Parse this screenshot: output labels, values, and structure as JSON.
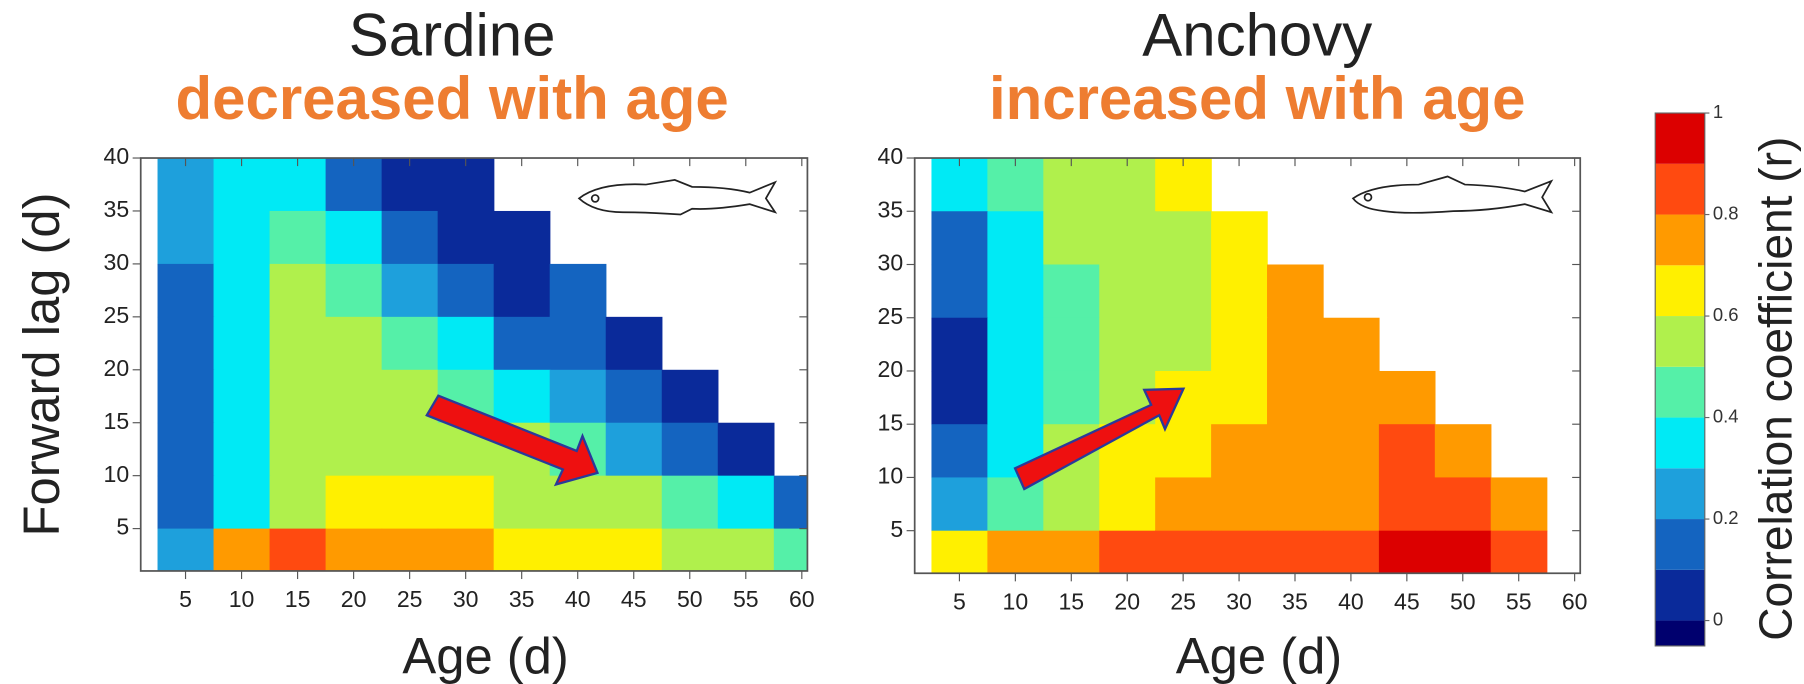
{
  "chart_data": [
    {
      "type": "contour",
      "title": "Sardine",
      "subtitle": "decreased with age",
      "xlabel": "Age (d)",
      "ylabel": "Forward lag (d)",
      "x": [
        5,
        10,
        15,
        20,
        25,
        30,
        35,
        40,
        45,
        50,
        55,
        60
      ],
      "y": [
        37.5,
        32.5,
        27.5,
        22.5,
        17.5,
        12.5,
        7.5,
        2.5
      ],
      "z": [
        [
          0.25,
          0.35,
          0.3,
          0.15,
          0.05,
          0.0,
          null,
          null,
          null,
          null,
          null,
          null
        ],
        [
          0.2,
          0.35,
          0.45,
          0.3,
          0.15,
          0.05,
          0.05,
          null,
          null,
          null,
          null,
          null
        ],
        [
          0.15,
          0.35,
          0.5,
          0.45,
          0.25,
          0.15,
          0.05,
          0.1,
          null,
          null,
          null,
          null
        ],
        [
          0.1,
          0.3,
          0.55,
          0.5,
          0.45,
          0.3,
          0.1,
          0.15,
          0.05,
          null,
          null,
          null
        ],
        [
          0.1,
          0.3,
          0.5,
          0.55,
          0.5,
          0.45,
          0.3,
          0.2,
          0.1,
          0.05,
          null,
          null
        ],
        [
          0.1,
          0.3,
          0.5,
          0.55,
          0.55,
          0.55,
          0.5,
          0.45,
          0.2,
          0.15,
          0.05,
          null
        ],
        [
          0.1,
          0.35,
          0.5,
          0.6,
          0.6,
          0.6,
          0.55,
          0.55,
          0.5,
          0.45,
          0.35,
          0.15
        ],
        [
          0.2,
          0.75,
          0.8,
          0.75,
          0.75,
          0.7,
          0.65,
          0.6,
          0.6,
          0.55,
          0.5,
          0.45
        ]
      ],
      "xlim": [
        1,
        60.5
      ],
      "ylim": [
        1,
        40
      ],
      "xticks": [
        5,
        10,
        15,
        20,
        25,
        30,
        35,
        40,
        45,
        50,
        55,
        60
      ],
      "yticks": [
        5,
        10,
        15,
        20,
        25,
        30,
        35,
        40
      ]
    },
    {
      "type": "contour",
      "title": "Anchovy",
      "subtitle": "increased with age",
      "xlabel": "Age (d)",
      "x": [
        5,
        10,
        15,
        20,
        25,
        30,
        35,
        40,
        45,
        50,
        55,
        60
      ],
      "y": [
        37.5,
        32.5,
        27.5,
        22.5,
        17.5,
        12.5,
        7.5,
        2.5
      ],
      "z": [
        [
          0.3,
          0.4,
          0.5,
          0.55,
          0.6,
          null,
          null,
          null,
          null,
          null,
          null,
          null
        ],
        [
          0.15,
          0.35,
          0.5,
          0.5,
          0.55,
          0.65,
          null,
          null,
          null,
          null,
          null,
          null
        ],
        [
          0.1,
          0.3,
          0.45,
          0.55,
          0.5,
          0.6,
          0.7,
          null,
          null,
          null,
          null,
          null
        ],
        [
          0.05,
          0.3,
          0.45,
          0.5,
          0.55,
          0.6,
          0.75,
          0.7,
          null,
          null,
          null,
          null
        ],
        [
          0.05,
          0.3,
          0.45,
          0.55,
          0.6,
          0.65,
          0.7,
          0.75,
          0.7,
          null,
          null,
          null
        ],
        [
          0.1,
          0.35,
          0.5,
          0.6,
          0.65,
          0.7,
          0.7,
          0.75,
          0.8,
          0.7,
          null,
          null
        ],
        [
          0.2,
          0.45,
          0.55,
          0.65,
          0.7,
          0.7,
          0.75,
          0.75,
          0.8,
          0.85,
          0.7,
          null
        ],
        [
          0.6,
          0.7,
          0.75,
          0.8,
          0.8,
          0.8,
          0.85,
          0.85,
          0.9,
          0.9,
          0.85,
          null
        ]
      ],
      "xlim": [
        1,
        60.5
      ],
      "ylim": [
        1,
        40
      ],
      "xticks": [
        5,
        10,
        15,
        20,
        25,
        30,
        35,
        40,
        45,
        50,
        55,
        60
      ],
      "yticks": [
        5,
        10,
        15,
        20,
        25,
        30,
        35,
        40
      ]
    }
  ],
  "colorbar": {
    "label": "Correlation coefficient (r)",
    "lim": [
      -0.05,
      1
    ],
    "levels": [
      0,
      0.1,
      0.2,
      0.3,
      0.4,
      0.5,
      0.6,
      0.7,
      0.8,
      0.9,
      1
    ],
    "colors": [
      "#00006e",
      "#0a2a9a",
      "#1464c0",
      "#1ea0dc",
      "#00eaf5",
      "#55f0a8",
      "#b0f04c",
      "#fff000",
      "#ff9a00",
      "#ff4a10",
      "#dc0000"
    ],
    "ticks": [
      0,
      0.2,
      0.4,
      0.6,
      0.8,
      1
    ]
  }
}
